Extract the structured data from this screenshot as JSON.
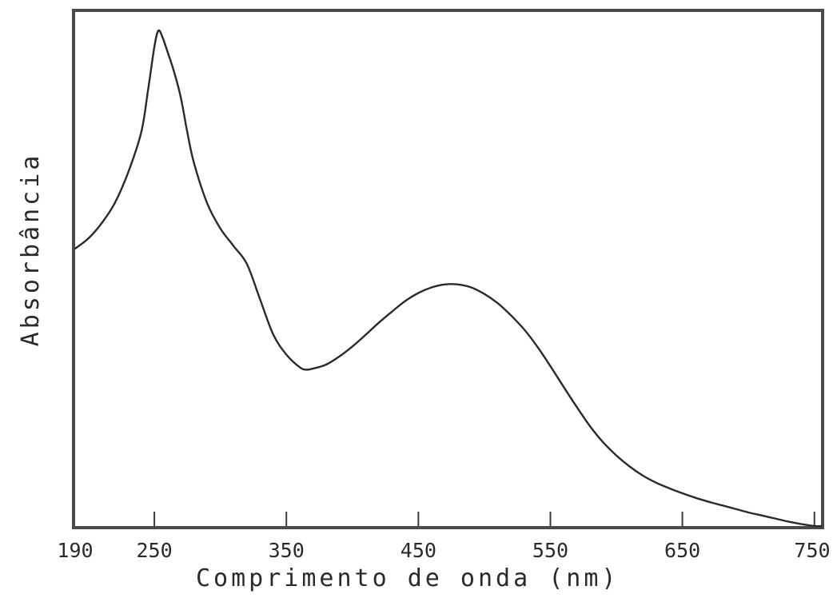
{
  "chart_data": {
    "type": "line",
    "xlabel": "Comprimento de onda (nm)",
    "ylabel": "Absorbância",
    "xlim": [
      190,
      755
    ],
    "ylim": [
      0,
      1
    ],
    "x_ticks": [
      190,
      250,
      350,
      450,
      550,
      650,
      750
    ],
    "y_ticks_shown": false,
    "grid": false,
    "series": [
      {
        "x": [
          190,
          200,
          210,
          220,
          230,
          240,
          245,
          250,
          253,
          256,
          260,
          265,
          270,
          275,
          280,
          290,
          300,
          310,
          320,
          330,
          340,
          350,
          360,
          365,
          370,
          380,
          390,
          400,
          410,
          420,
          430,
          440,
          450,
          460,
          470,
          480,
          490,
          500,
          510,
          520,
          530,
          540,
          550,
          560,
          570,
          580,
          590,
          600,
          610,
          620,
          630,
          640,
          650,
          660,
          670,
          680,
          690,
          700,
          710,
          720,
          730,
          740,
          750,
          755
        ],
        "y": [
          0.55,
          0.57,
          0.6,
          0.64,
          0.7,
          0.78,
          0.86,
          0.95,
          0.982,
          0.97,
          0.94,
          0.9,
          0.85,
          0.78,
          0.72,
          0.64,
          0.59,
          0.555,
          0.52,
          0.45,
          0.38,
          0.34,
          0.315,
          0.31,
          0.312,
          0.32,
          0.336,
          0.356,
          0.379,
          0.403,
          0.425,
          0.446,
          0.462,
          0.473,
          0.479,
          0.479,
          0.473,
          0.46,
          0.442,
          0.418,
          0.39,
          0.356,
          0.317,
          0.276,
          0.236,
          0.198,
          0.166,
          0.14,
          0.118,
          0.1,
          0.086,
          0.075,
          0.065,
          0.056,
          0.048,
          0.041,
          0.034,
          0.027,
          0.021,
          0.015,
          0.009,
          0.004,
          0.0,
          0.0
        ]
      }
    ]
  },
  "labels": {
    "xlabel": "Comprimento de onda (nm)",
    "ylabel": "Absorbância"
  },
  "colors": {
    "ink": "#2a2a2a",
    "frame": "#4a4a4a"
  }
}
